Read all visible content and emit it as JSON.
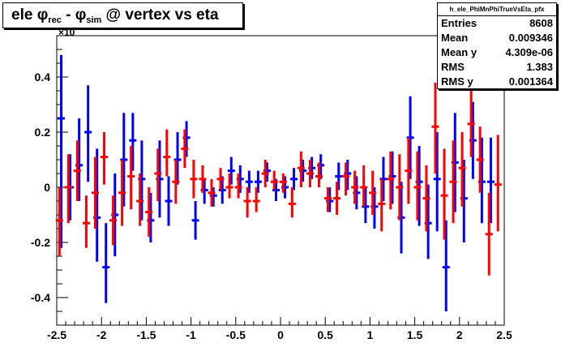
{
  "title": {
    "pre": "ele φ",
    "sub1": "rec",
    "mid": " - φ",
    "sub2": "sim",
    "post": " @ vertex vs eta"
  },
  "multiplier_label": "×10",
  "stats": {
    "name": "h_ele_PhiMnPhiTrueVsEta_pfx",
    "rows": [
      {
        "key": "Entries",
        "value": "8608"
      },
      {
        "key": "Mean",
        "value": "0.009346"
      },
      {
        "key": "Mean y",
        "value": "4.309e-06"
      },
      {
        "key": "RMS",
        "value": "1.383"
      },
      {
        "key": "RMS y",
        "value": "0.001364"
      }
    ]
  },
  "chart_data": {
    "type": "scatter",
    "title": "ele φrec - φsim @ vertex vs eta",
    "xlim": [
      -2.5,
      2.5
    ],
    "ylim": [
      -0.5,
      0.55
    ],
    "x_ticks": [
      -2.5,
      -2,
      -1.5,
      -1,
      -0.5,
      0,
      0.5,
      1,
      1.5,
      2,
      2.5
    ],
    "x_tick_labels": [
      "-2.5",
      "-2",
      "-1.5",
      "-1",
      "-0.5",
      "0",
      "0.5",
      "1",
      "1.5",
      "2",
      "2.5"
    ],
    "y_ticks": [
      -0.4,
      -0.2,
      0,
      0.2,
      0.4
    ],
    "y_tick_labels": [
      "-0.4",
      "-0.2",
      "0",
      "0.2",
      "0.4"
    ],
    "grid": false,
    "series": [
      {
        "color": "#0000ff",
        "points": [
          {
            "x": -2.45,
            "y": 0.25,
            "lo": -0.22,
            "hi": 0.48
          },
          {
            "x": -2.35,
            "y": 0.0,
            "lo": -0.12,
            "hi": 0.12
          },
          {
            "x": -2.25,
            "y": 0.08,
            "lo": -0.05,
            "hi": 0.25
          },
          {
            "x": -2.15,
            "y": 0.2,
            "lo": 0.02,
            "hi": 0.37
          },
          {
            "x": -2.05,
            "y": -0.11,
            "lo": -0.27,
            "hi": 0.14
          },
          {
            "x": -1.95,
            "y": -0.29,
            "lo": -0.42,
            "hi": -0.13
          },
          {
            "x": -1.85,
            "y": -0.1,
            "lo": -0.25,
            "hi": 0.05
          },
          {
            "x": -1.75,
            "y": 0.1,
            "lo": -0.07,
            "hi": 0.27
          },
          {
            "x": -1.65,
            "y": 0.17,
            "lo": 0.06,
            "hi": 0.27
          },
          {
            "x": -1.55,
            "y": 0.03,
            "lo": -0.12,
            "hi": 0.17
          },
          {
            "x": -1.45,
            "y": -0.12,
            "lo": -0.2,
            "hi": -0.02
          },
          {
            "x": -1.35,
            "y": 0.03,
            "lo": -0.11,
            "hi": 0.17
          },
          {
            "x": -1.25,
            "y": -0.05,
            "lo": -0.14,
            "hi": 0.04
          },
          {
            "x": -1.15,
            "y": 0.1,
            "lo": 0.01,
            "hi": 0.2
          },
          {
            "x": -1.05,
            "y": 0.18,
            "lo": 0.11,
            "hi": 0.24
          },
          {
            "x": -0.95,
            "y": -0.12,
            "lo": -0.19,
            "hi": -0.05
          },
          {
            "x": -0.85,
            "y": -0.01,
            "lo": -0.06,
            "hi": 0.03
          },
          {
            "x": -0.75,
            "y": -0.03,
            "lo": -0.07,
            "hi": 0.0
          },
          {
            "x": -0.65,
            "y": -0.01,
            "lo": -0.06,
            "hi": 0.04
          },
          {
            "x": -0.55,
            "y": 0.06,
            "lo": 0.01,
            "hi": 0.11
          },
          {
            "x": -0.45,
            "y": 0.03,
            "lo": -0.02,
            "hi": 0.08
          },
          {
            "x": -0.35,
            "y": 0.02,
            "lo": -0.02,
            "hi": 0.06
          },
          {
            "x": -0.25,
            "y": 0.02,
            "lo": -0.02,
            "hi": 0.06
          },
          {
            "x": -0.15,
            "y": 0.06,
            "lo": 0.02,
            "hi": 0.09
          },
          {
            "x": -0.05,
            "y": -0.01,
            "lo": -0.05,
            "hi": 0.03
          },
          {
            "x": 0.05,
            "y": 0.0,
            "lo": -0.04,
            "hi": 0.04
          },
          {
            "x": 0.15,
            "y": 0.03,
            "lo": -0.01,
            "hi": 0.07
          },
          {
            "x": 0.25,
            "y": 0.06,
            "lo": 0.02,
            "hi": 0.1
          },
          {
            "x": 0.35,
            "y": 0.07,
            "lo": 0.03,
            "hi": 0.11
          },
          {
            "x": 0.45,
            "y": 0.08,
            "lo": 0.03,
            "hi": 0.12
          },
          {
            "x": 0.55,
            "y": -0.05,
            "lo": -0.09,
            "hi": 0.0
          },
          {
            "x": 0.65,
            "y": 0.04,
            "lo": -0.01,
            "hi": 0.09
          },
          {
            "x": 0.75,
            "y": 0.05,
            "lo": -0.01,
            "hi": 0.1
          },
          {
            "x": 0.85,
            "y": -0.02,
            "lo": -0.08,
            "hi": 0.04
          },
          {
            "x": 0.95,
            "y": -0.07,
            "lo": -0.13,
            "hi": 0.0
          },
          {
            "x": 1.05,
            "y": -0.07,
            "lo": -0.15,
            "hi": 0.0
          },
          {
            "x": 1.15,
            "y": 0.03,
            "lo": -0.05,
            "hi": 0.11
          },
          {
            "x": 1.25,
            "y": 0.04,
            "lo": -0.06,
            "hi": 0.13
          },
          {
            "x": 1.35,
            "y": -0.11,
            "lo": -0.24,
            "hi": 0.02
          },
          {
            "x": 1.45,
            "y": 0.18,
            "lo": 0.03,
            "hi": 0.33
          },
          {
            "x": 1.55,
            "y": 0.02,
            "lo": -0.14,
            "hi": 0.15
          },
          {
            "x": 1.65,
            "y": -0.13,
            "lo": -0.26,
            "hi": 0.01
          },
          {
            "x": 1.75,
            "y": 0.03,
            "lo": -0.16,
            "hi": 0.2
          },
          {
            "x": 1.85,
            "y": -0.29,
            "lo": -0.45,
            "hi": -0.12
          },
          {
            "x": 1.95,
            "y": 0.09,
            "lo": -0.09,
            "hi": 0.27
          },
          {
            "x": 2.05,
            "y": -0.04,
            "lo": -0.2,
            "hi": 0.1
          },
          {
            "x": 2.15,
            "y": 0.17,
            "lo": 0.03,
            "hi": 0.31
          },
          {
            "x": 2.25,
            "y": 0.02,
            "lo": -0.13,
            "hi": 0.18
          },
          {
            "x": 2.35,
            "y": 0.02,
            "lo": -0.13,
            "hi": 0.18
          }
        ]
      },
      {
        "color": "#ff0000",
        "points": [
          {
            "x": -2.47,
            "y": -0.12,
            "lo": -0.25,
            "hi": 0.0
          },
          {
            "x": -2.37,
            "y": 0.0,
            "lo": -0.13,
            "hi": 0.12
          },
          {
            "x": -2.27,
            "y": 0.06,
            "lo": -0.05,
            "hi": 0.17
          },
          {
            "x": -2.17,
            "y": -0.13,
            "lo": -0.22,
            "hi": -0.03
          },
          {
            "x": -2.07,
            "y": -0.02,
            "lo": -0.15,
            "hi": 0.11
          },
          {
            "x": -1.97,
            "y": 0.11,
            "lo": 0.01,
            "hi": 0.2
          },
          {
            "x": -1.87,
            "y": -0.12,
            "lo": -0.21,
            "hi": -0.03
          },
          {
            "x": -1.77,
            "y": -0.02,
            "lo": -0.14,
            "hi": 0.1
          },
          {
            "x": -1.67,
            "y": 0.04,
            "lo": -0.08,
            "hi": 0.15
          },
          {
            "x": -1.57,
            "y": -0.05,
            "lo": -0.14,
            "hi": 0.05
          },
          {
            "x": -1.47,
            "y": -0.09,
            "lo": -0.18,
            "hi": 0.0
          },
          {
            "x": -1.37,
            "y": 0.05,
            "lo": -0.05,
            "hi": 0.14
          },
          {
            "x": -1.27,
            "y": 0.11,
            "lo": 0.04,
            "hi": 0.21
          },
          {
            "x": -1.17,
            "y": 0.02,
            "lo": -0.06,
            "hi": 0.1
          },
          {
            "x": -1.07,
            "y": 0.14,
            "lo": 0.07,
            "hi": 0.21
          },
          {
            "x": -0.97,
            "y": 0.03,
            "lo": -0.04,
            "hi": 0.1
          },
          {
            "x": -0.87,
            "y": 0.03,
            "lo": -0.02,
            "hi": 0.08
          },
          {
            "x": -0.77,
            "y": -0.02,
            "lo": -0.07,
            "hi": 0.03
          },
          {
            "x": -0.67,
            "y": 0.03,
            "lo": -0.01,
            "hi": 0.07
          },
          {
            "x": -0.57,
            "y": 0.0,
            "lo": -0.04,
            "hi": 0.05
          },
          {
            "x": -0.47,
            "y": 0.0,
            "lo": -0.04,
            "hi": 0.05
          },
          {
            "x": -0.37,
            "y": -0.05,
            "lo": -0.11,
            "hi": 0.0
          },
          {
            "x": -0.27,
            "y": -0.05,
            "lo": -0.09,
            "hi": 0.0
          },
          {
            "x": -0.17,
            "y": 0.05,
            "lo": 0.0,
            "hi": 0.1
          },
          {
            "x": -0.07,
            "y": 0.02,
            "lo": -0.01,
            "hi": 0.06
          },
          {
            "x": 0.03,
            "y": 0.02,
            "lo": -0.02,
            "hi": 0.05
          },
          {
            "x": 0.13,
            "y": -0.06,
            "lo": -0.11,
            "hi": 0.0
          },
          {
            "x": 0.23,
            "y": 0.07,
            "lo": 0.0,
            "hi": 0.13
          },
          {
            "x": 0.33,
            "y": 0.05,
            "lo": 0.0,
            "hi": 0.1
          },
          {
            "x": 0.43,
            "y": 0.04,
            "lo": 0.0,
            "hi": 0.09
          },
          {
            "x": 0.53,
            "y": -0.04,
            "lo": -0.09,
            "hi": 0.0
          },
          {
            "x": 0.63,
            "y": -0.04,
            "lo": -0.1,
            "hi": 0.02
          },
          {
            "x": 0.73,
            "y": 0.04,
            "lo": -0.03,
            "hi": 0.09
          },
          {
            "x": 0.83,
            "y": 0.0,
            "lo": -0.06,
            "hi": 0.06
          },
          {
            "x": 0.93,
            "y": 0.0,
            "lo": -0.07,
            "hi": 0.08
          },
          {
            "x": 1.03,
            "y": -0.02,
            "lo": -0.1,
            "hi": 0.06
          },
          {
            "x": 1.13,
            "y": -0.06,
            "lo": -0.16,
            "hi": 0.03
          },
          {
            "x": 1.23,
            "y": 0.03,
            "lo": -0.08,
            "hi": 0.13
          },
          {
            "x": 1.33,
            "y": 0.0,
            "lo": -0.12,
            "hi": 0.12
          },
          {
            "x": 1.43,
            "y": 0.06,
            "lo": -0.06,
            "hi": 0.18
          },
          {
            "x": 1.53,
            "y": 0.0,
            "lo": -0.12,
            "hi": 0.13
          },
          {
            "x": 1.63,
            "y": -0.04,
            "lo": -0.16,
            "hi": 0.08
          },
          {
            "x": 1.73,
            "y": 0.22,
            "lo": 0.05,
            "hi": 0.38
          },
          {
            "x": 1.83,
            "y": -0.03,
            "lo": -0.19,
            "hi": 0.14
          },
          {
            "x": 1.93,
            "y": 0.02,
            "lo": -0.13,
            "hi": 0.17
          },
          {
            "x": 2.03,
            "y": 0.07,
            "lo": -0.07,
            "hi": 0.2
          },
          {
            "x": 2.13,
            "y": 0.23,
            "lo": 0.11,
            "hi": 0.35
          },
          {
            "x": 2.23,
            "y": 0.1,
            "lo": -0.02,
            "hi": 0.22
          },
          {
            "x": 2.33,
            "y": -0.17,
            "lo": -0.32,
            "hi": -0.02
          },
          {
            "x": 2.43,
            "y": 0.01,
            "lo": -0.16,
            "hi": 0.19
          }
        ]
      }
    ]
  }
}
